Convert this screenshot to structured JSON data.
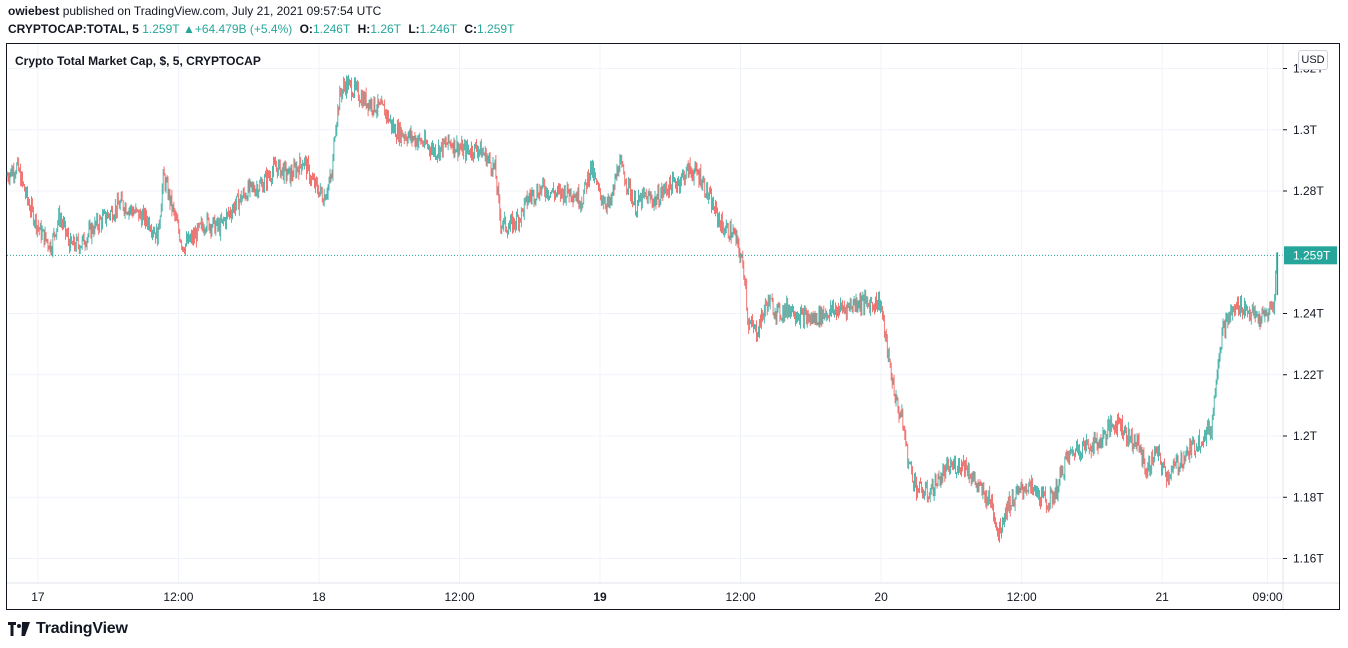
{
  "header": {
    "author": "owiebest",
    "published_text": "published on TradingView.com, July 21, 2021 09:57:54 UTC"
  },
  "ohlc_bar": {
    "symbol": "CRYPTOCAP:TOTAL, 5",
    "price": "1.259T",
    "arrow": "▲",
    "change": "+64.479B (+5.4%)",
    "o_label": "O:",
    "o_value": "1.246T",
    "h_label": "H:",
    "h_value": "1.26T",
    "l_label": "L:",
    "l_value": "1.246T",
    "c_label": "C:",
    "c_value": "1.259T"
  },
  "legend_title": "Crypto Total Market Cap, $, 5, CRYPTOCAP",
  "currency_button": "USD",
  "brand_name": "TradingView",
  "colors": {
    "up": "#26a69a",
    "down": "#ef5350",
    "grid": "#f0f3fa",
    "price_line": "#26a69a",
    "frame": "#131722"
  },
  "chart_data": {
    "type": "candlestick",
    "title": "Crypto Total Market Cap, $, 5, CRYPTOCAP",
    "ylim": [
      1.152,
      1.328
    ],
    "y_ticks": [
      1.32,
      1.3,
      1.28,
      1.24,
      1.22,
      1.2,
      1.18,
      1.16
    ],
    "y_tick_labels": [
      "1.32T",
      "1.3T",
      "1.28T",
      "1.24T",
      "1.22T",
      "1.2T",
      "1.18T",
      "1.16T"
    ],
    "last_price": 1.259,
    "last_price_label": "1.259T",
    "x_ticks": [
      {
        "label": "17",
        "day": 17.0,
        "bold": false
      },
      {
        "label": "12:00",
        "day": 17.5,
        "bold": false
      },
      {
        "label": "18",
        "day": 18.0,
        "bold": false
      },
      {
        "label": "12:00",
        "day": 18.5,
        "bold": false
      },
      {
        "label": "19",
        "day": 19.0,
        "bold": true
      },
      {
        "label": "12:00",
        "day": 19.5,
        "bold": false
      },
      {
        "label": "20",
        "day": 20.0,
        "bold": false
      },
      {
        "label": "12:00",
        "day": 20.5,
        "bold": false
      },
      {
        "label": "21",
        "day": 21.0,
        "bold": false
      },
      {
        "label": "09:00",
        "day": 21.375,
        "bold": false
      }
    ],
    "xlim": [
      16.89,
      21.43
    ],
    "close_path": [
      [
        16.89,
        1.285
      ],
      [
        16.93,
        1.288
      ],
      [
        16.97,
        1.276
      ],
      [
        17.01,
        1.267
      ],
      [
        17.05,
        1.262
      ],
      [
        17.08,
        1.272
      ],
      [
        17.12,
        1.262
      ],
      [
        17.16,
        1.263
      ],
      [
        17.2,
        1.268
      ],
      [
        17.25,
        1.272
      ],
      [
        17.3,
        1.276
      ],
      [
        17.35,
        1.273
      ],
      [
        17.4,
        1.27
      ],
      [
        17.43,
        1.265
      ],
      [
        17.45,
        1.285
      ],
      [
        17.48,
        1.275
      ],
      [
        17.52,
        1.262
      ],
      [
        17.56,
        1.265
      ],
      [
        17.6,
        1.27
      ],
      [
        17.65,
        1.268
      ],
      [
        17.7,
        1.275
      ],
      [
        17.75,
        1.28
      ],
      [
        17.8,
        1.282
      ],
      [
        17.85,
        1.288
      ],
      [
        17.9,
        1.285
      ],
      [
        17.95,
        1.29
      ],
      [
        17.98,
        1.283
      ],
      [
        18.02,
        1.278
      ],
      [
        18.05,
        1.285
      ],
      [
        18.06,
        1.3
      ],
      [
        18.08,
        1.312
      ],
      [
        18.1,
        1.315
      ],
      [
        18.13,
        1.313
      ],
      [
        18.16,
        1.31
      ],
      [
        18.2,
        1.308
      ],
      [
        18.24,
        1.306
      ],
      [
        18.27,
        1.3
      ],
      [
        18.32,
        1.298
      ],
      [
        18.37,
        1.296
      ],
      [
        18.42,
        1.293
      ],
      [
        18.47,
        1.296
      ],
      [
        18.52,
        1.293
      ],
      [
        18.57,
        1.294
      ],
      [
        18.6,
        1.291
      ],
      [
        18.63,
        1.287
      ],
      [
        18.65,
        1.27
      ],
      [
        18.68,
        1.268
      ],
      [
        18.72,
        1.272
      ],
      [
        18.75,
        1.278
      ],
      [
        18.8,
        1.281
      ],
      [
        18.85,
        1.279
      ],
      [
        18.9,
        1.28
      ],
      [
        18.94,
        1.277
      ],
      [
        18.97,
        1.288
      ],
      [
        19.0,
        1.279
      ],
      [
        19.04,
        1.275
      ],
      [
        19.07,
        1.289
      ],
      [
        19.1,
        1.283
      ],
      [
        19.13,
        1.275
      ],
      [
        19.16,
        1.278
      ],
      [
        19.2,
        1.277
      ],
      [
        19.24,
        1.281
      ],
      [
        19.28,
        1.283
      ],
      [
        19.32,
        1.287
      ],
      [
        19.36,
        1.285
      ],
      [
        19.4,
        1.276
      ],
      [
        19.44,
        1.268
      ],
      [
        19.48,
        1.266
      ],
      [
        19.5,
        1.26
      ],
      [
        19.52,
        1.252
      ],
      [
        19.53,
        1.237
      ],
      [
        19.56,
        1.234
      ],
      [
        19.6,
        1.244
      ],
      [
        19.64,
        1.24
      ],
      [
        19.68,
        1.242
      ],
      [
        19.72,
        1.239
      ],
      [
        19.76,
        1.238
      ],
      [
        19.8,
        1.24
      ],
      [
        19.84,
        1.241
      ],
      [
        19.88,
        1.242
      ],
      [
        19.92,
        1.244
      ],
      [
        19.96,
        1.243
      ],
      [
        20.0,
        1.244
      ],
      [
        20.03,
        1.225
      ],
      [
        20.06,
        1.21
      ],
      [
        20.08,
        1.205
      ],
      [
        20.1,
        1.192
      ],
      [
        20.13,
        1.183
      ],
      [
        20.17,
        1.181
      ],
      [
        20.21,
        1.186
      ],
      [
        20.25,
        1.19
      ],
      [
        20.3,
        1.191
      ],
      [
        20.35,
        1.183
      ],
      [
        20.4,
        1.178
      ],
      [
        20.42,
        1.168
      ],
      [
        20.45,
        1.177
      ],
      [
        20.48,
        1.18
      ],
      [
        20.52,
        1.184
      ],
      [
        20.56,
        1.181
      ],
      [
        20.6,
        1.178
      ],
      [
        20.63,
        1.183
      ],
      [
        20.66,
        1.192
      ],
      [
        20.7,
        1.196
      ],
      [
        20.74,
        1.197
      ],
      [
        20.78,
        1.198
      ],
      [
        20.82,
        1.203
      ],
      [
        20.85,
        1.205
      ],
      [
        20.88,
        1.2
      ],
      [
        20.92,
        1.197
      ],
      [
        20.95,
        1.188
      ],
      [
        20.98,
        1.195
      ],
      [
        21.02,
        1.187
      ],
      [
        21.05,
        1.19
      ],
      [
        21.1,
        1.195
      ],
      [
        21.15,
        1.2
      ],
      [
        21.18,
        1.203
      ],
      [
        21.2,
        1.224
      ],
      [
        21.22,
        1.235
      ],
      [
        21.25,
        1.24
      ],
      [
        21.28,
        1.243
      ],
      [
        21.32,
        1.24
      ],
      [
        21.35,
        1.238
      ],
      [
        21.38,
        1.24
      ],
      [
        21.4,
        1.243
      ],
      [
        21.405,
        1.246
      ],
      [
        21.41,
        1.259
      ]
    ]
  }
}
